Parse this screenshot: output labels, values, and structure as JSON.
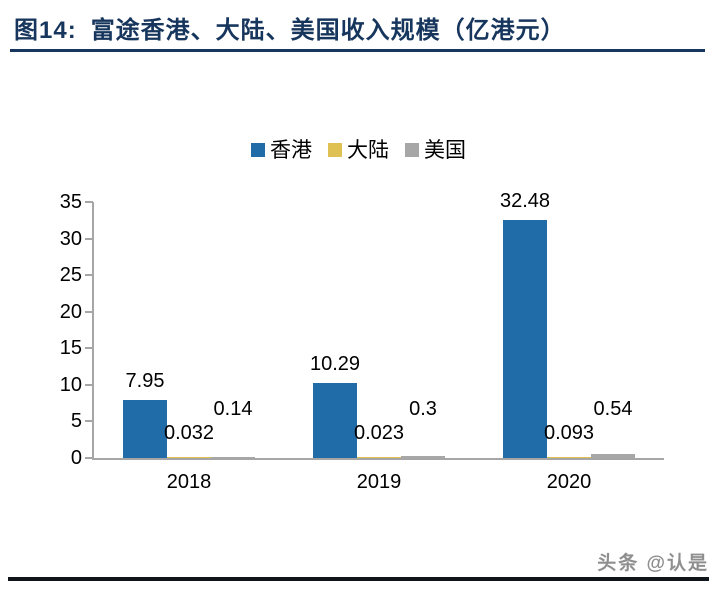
{
  "header": {
    "title_prefix": "图14:",
    "title_text": "富途香港、大陆、美国收入规模（亿港元）",
    "accent_color": "#17365D"
  },
  "watermark": {
    "text": "头条 @认是"
  },
  "chart_data": {
    "type": "bar",
    "title": "富途香港、大陆、美国收入规模（亿港元）",
    "categories": [
      "2018",
      "2019",
      "2020"
    ],
    "series": [
      {
        "name": "香港",
        "color": "#1F6CA8",
        "values": [
          7.95,
          10.29,
          32.48
        ],
        "labels": [
          "7.95",
          "10.29",
          "32.48"
        ]
      },
      {
        "name": "大陆",
        "color": "#DFC052",
        "values": [
          0.032,
          0.023,
          0.093
        ],
        "labels": [
          "0.032",
          "0.023",
          "0.093"
        ]
      },
      {
        "name": "美国",
        "color": "#A7A7A7",
        "values": [
          0.14,
          0.3,
          0.54
        ],
        "labels": [
          "0.14",
          "0.3",
          "0.54"
        ]
      }
    ],
    "xlabel": "",
    "ylabel": "",
    "ylim": [
      0,
      35
    ],
    "yticks": [
      0,
      5,
      10,
      15,
      20,
      25,
      30,
      35
    ],
    "grid": false,
    "legend_position": "top",
    "axis_color": "#A6A6A6"
  }
}
